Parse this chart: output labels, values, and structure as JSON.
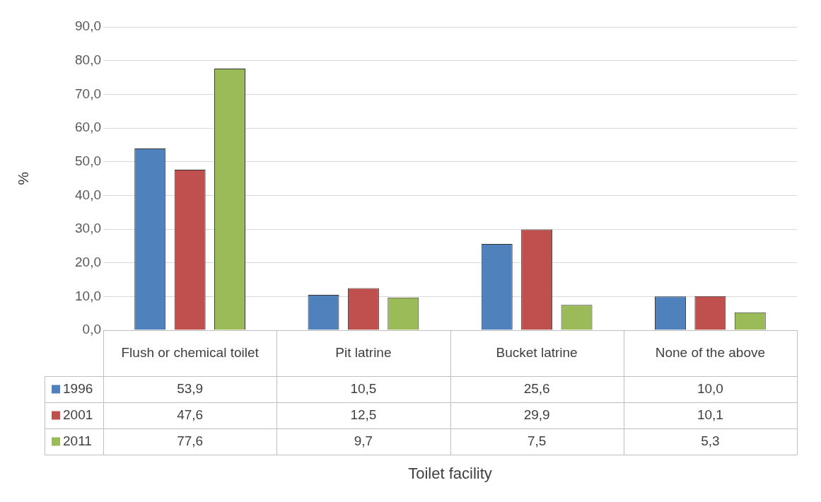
{
  "chart_data": {
    "type": "bar",
    "annotations": [
      "Toilet facility"
    ],
    "ylabel": "%",
    "categories": [
      "Flush or chemical toilet",
      "Pit latrine",
      "Bucket latrine",
      "None of the above"
    ],
    "series": [
      {
        "name": "1996",
        "color": "#4f81bd",
        "values": [
          53.9,
          10.5,
          25.6,
          10.0
        ],
        "value_labels": [
          "53,9",
          "10,5",
          "25,6",
          "10,0"
        ]
      },
      {
        "name": "2001",
        "color": "#c0504d",
        "values": [
          47.6,
          12.5,
          29.9,
          10.1
        ],
        "value_labels": [
          "47,6",
          "12,5",
          "29,9",
          "10,1"
        ]
      },
      {
        "name": "2011",
        "color": "#9bbb59",
        "values": [
          77.6,
          9.7,
          7.5,
          5.3
        ],
        "value_labels": [
          "77,6",
          "9,7",
          "7,5",
          "5,3"
        ]
      }
    ],
    "ylim": [
      0,
      90
    ],
    "yticks": [
      {
        "value": 0,
        "label": "0,0"
      },
      {
        "value": 10,
        "label": "10,0"
      },
      {
        "value": 20,
        "label": "20,0"
      },
      {
        "value": 30,
        "label": "30,0"
      },
      {
        "value": 40,
        "label": "40,0"
      },
      {
        "value": 50,
        "label": "50,0"
      },
      {
        "value": 60,
        "label": "60,0"
      },
      {
        "value": 70,
        "label": "70,0"
      },
      {
        "value": 80,
        "label": "80,0"
      },
      {
        "value": 90,
        "label": "90,0"
      }
    ],
    "grid": "y",
    "legend": "bottom left"
  }
}
